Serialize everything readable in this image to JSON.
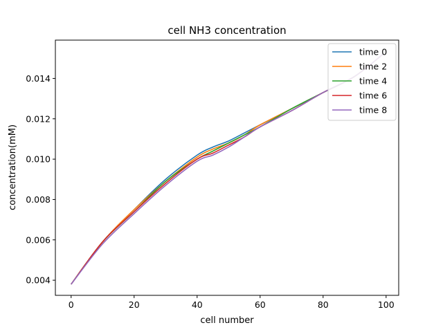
{
  "chart_data": {
    "type": "line",
    "title": "cell NH3 concentration",
    "xlabel": "cell number",
    "ylabel": "concentration(mM)",
    "xlim": [
      -5,
      104
    ],
    "ylim": [
      0.00325,
      0.0159
    ],
    "xticks": [
      0,
      20,
      40,
      60,
      80,
      100
    ],
    "yticks": [
      0.004,
      0.006,
      0.008,
      0.01,
      0.012,
      0.014
    ],
    "xtick_labels": [
      "0",
      "20",
      "40",
      "60",
      "80",
      "100"
    ],
    "ytick_labels": [
      "0.004",
      "0.006",
      "0.008",
      "0.010",
      "0.012",
      "0.014"
    ],
    "grid": false,
    "legend_position": "top-right",
    "x": [
      0,
      10,
      20,
      30,
      40,
      45,
      50,
      55,
      60,
      70,
      80,
      90,
      99
    ],
    "series": [
      {
        "name": "time 0",
        "color": "#1f77b4",
        "values": [
          0.0038,
          0.0059,
          0.0075,
          0.009,
          0.0102,
          0.0106,
          0.0109,
          0.0113,
          0.0117,
          0.0125,
          0.0133,
          0.0141,
          0.0152
        ]
      },
      {
        "name": "time 2",
        "color": "#ff7f0e",
        "values": [
          0.0038,
          0.0059,
          0.0075,
          0.0089,
          0.0101,
          0.0105,
          0.0108,
          0.0112,
          0.0117,
          0.0125,
          0.0133,
          0.0141,
          0.0152
        ]
      },
      {
        "name": "time 4",
        "color": "#2ca02c",
        "values": [
          0.0038,
          0.0059,
          0.0074,
          0.0089,
          0.01,
          0.0104,
          0.0108,
          0.0112,
          0.0116,
          0.0125,
          0.0133,
          0.0141,
          0.0152
        ]
      },
      {
        "name": "time 6",
        "color": "#d62728",
        "values": [
          0.0038,
          0.0059,
          0.0074,
          0.0088,
          0.01,
          0.0103,
          0.0107,
          0.0111,
          0.0116,
          0.0124,
          0.0133,
          0.0141,
          0.0152
        ]
      },
      {
        "name": "time 8",
        "color": "#9467bd",
        "values": [
          0.0038,
          0.0058,
          0.0073,
          0.0087,
          0.0099,
          0.0102,
          0.0106,
          0.0111,
          0.0116,
          0.0124,
          0.0133,
          0.0141,
          0.0152
        ]
      }
    ]
  }
}
